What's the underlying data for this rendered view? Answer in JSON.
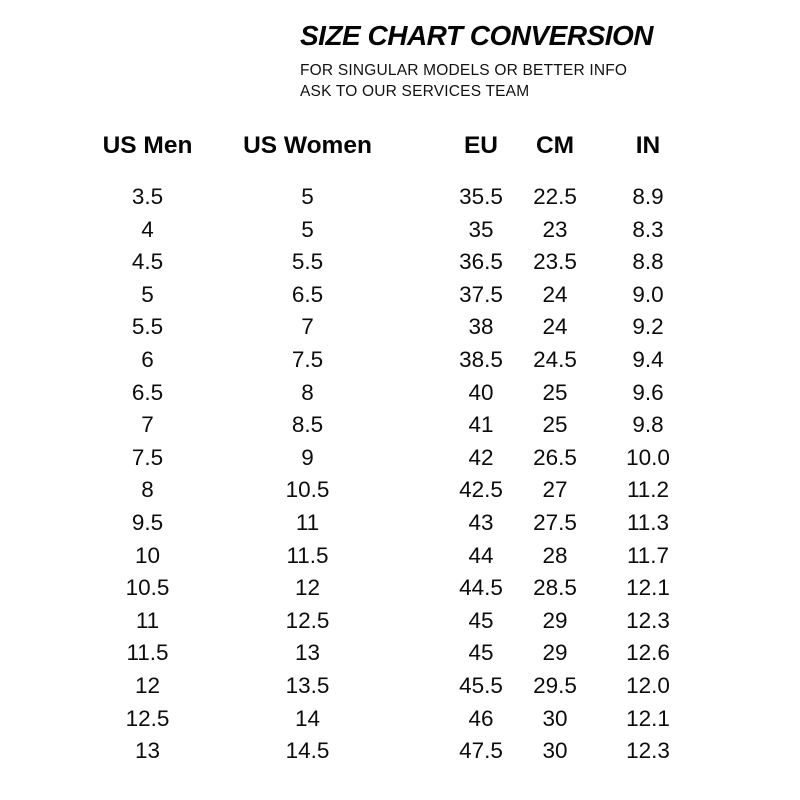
{
  "header": {
    "title": "SIZE CHART CONVERSION",
    "subtitle_line1": "FOR SINGULAR MODELS OR BETTER INFO",
    "subtitle_line2": "ASK TO OUR SERVICES TEAM"
  },
  "colors": {
    "text": "#0c0c0c",
    "background": "#ffffff"
  },
  "chart_data": {
    "type": "table",
    "title": "SIZE CHART CONVERSION",
    "columns": [
      "US Men",
      "US Women",
      "EU",
      "CM",
      "IN"
    ],
    "rows": [
      [
        "3.5",
        "5",
        "35.5",
        "22.5",
        "8.9"
      ],
      [
        "4",
        "5",
        "35",
        "23",
        "8.3"
      ],
      [
        "4.5",
        "5.5",
        "36.5",
        "23.5",
        "8.8"
      ],
      [
        "5",
        "6.5",
        "37.5",
        "24",
        "9.0"
      ],
      [
        "5.5",
        "7",
        "38",
        "24",
        "9.2"
      ],
      [
        "6",
        "7.5",
        "38.5",
        "24.5",
        "9.4"
      ],
      [
        "6.5",
        "8",
        "40",
        "25",
        "9.6"
      ],
      [
        "7",
        "8.5",
        "41",
        "25",
        "9.8"
      ],
      [
        "7.5",
        "9",
        "42",
        "26.5",
        "10.0"
      ],
      [
        "8",
        "10.5",
        "42.5",
        "27",
        "11.2"
      ],
      [
        "9.5",
        "11",
        "43",
        "27.5",
        "11.3"
      ],
      [
        "10",
        "11.5",
        "44",
        "28",
        "11.7"
      ],
      [
        "10.5",
        "12",
        "44.5",
        "28.5",
        "12.1"
      ],
      [
        "11",
        "12.5",
        "45",
        "29",
        "12.3"
      ],
      [
        "11.5",
        "13",
        "45",
        "29",
        "12.6"
      ],
      [
        "12",
        "13.5",
        "45.5",
        "29.5",
        "12.0"
      ],
      [
        "12.5",
        "14",
        "46",
        "30",
        "12.1"
      ],
      [
        "13",
        "14.5",
        "47.5",
        "30",
        "12.3"
      ]
    ]
  }
}
